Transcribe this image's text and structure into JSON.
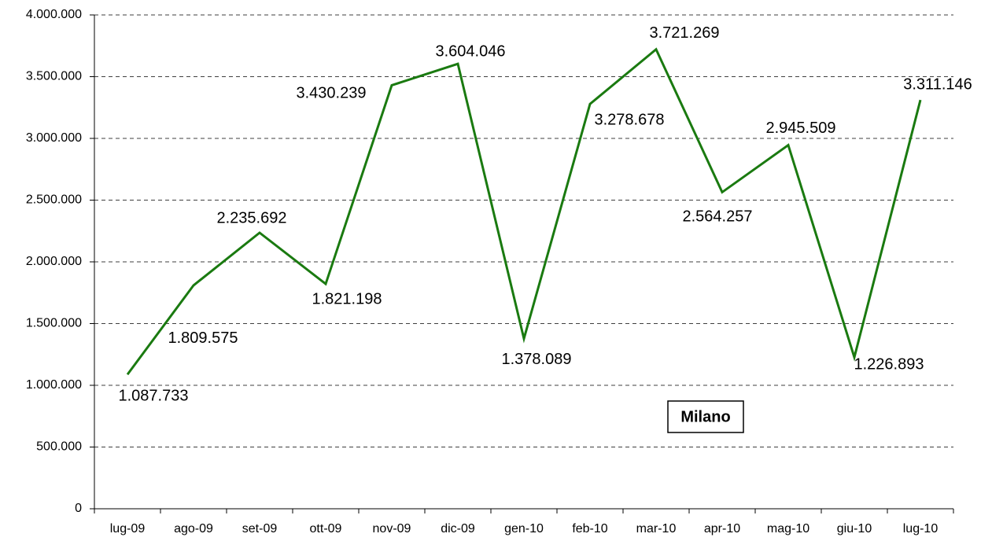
{
  "chart_data": {
    "type": "line",
    "categories": [
      "lug-09",
      "ago-09",
      "set-09",
      "ott-09",
      "nov-09",
      "dic-09",
      "gen-10",
      "feb-10",
      "mar-10",
      "apr-10",
      "mag-10",
      "giu-10",
      "lug-10"
    ],
    "series": [
      {
        "name": "Milano",
        "color": "#1a7a10",
        "values": [
          1087733,
          1809575,
          2235692,
          1821198,
          3430239,
          3604046,
          1378089,
          3278678,
          3721269,
          2564257,
          2945509,
          1226893,
          3311146
        ],
        "value_labels": [
          "1.087.733",
          "1.809.575",
          "2.235.692",
          "1.821.198",
          "3.430.239",
          "3.604.046",
          "1.378.089",
          "3.278.678",
          "3.721.269",
          "2.564.257",
          "2.945.509",
          "1.226.893",
          "3.311.146"
        ]
      }
    ],
    "annotation": "Milano",
    "ylim": [
      0,
      4000000
    ],
    "yticks": [
      0,
      {
        "value": 500000,
        "label": "500.000"
      },
      {
        "value": 1000000,
        "label": "1.000.000"
      },
      {
        "value": 1500000,
        "label": "1.500.000"
      },
      {
        "value": 2000000,
        "label": "2.000.000"
      },
      {
        "value": 2500000,
        "label": "2.500.000"
      },
      {
        "value": 3000000,
        "label": "3.000.000"
      },
      {
        "value": 3500000,
        "label": "3.500.000"
      },
      {
        "value": 4000000,
        "label": "4.000.000"
      }
    ],
    "grid": true
  }
}
